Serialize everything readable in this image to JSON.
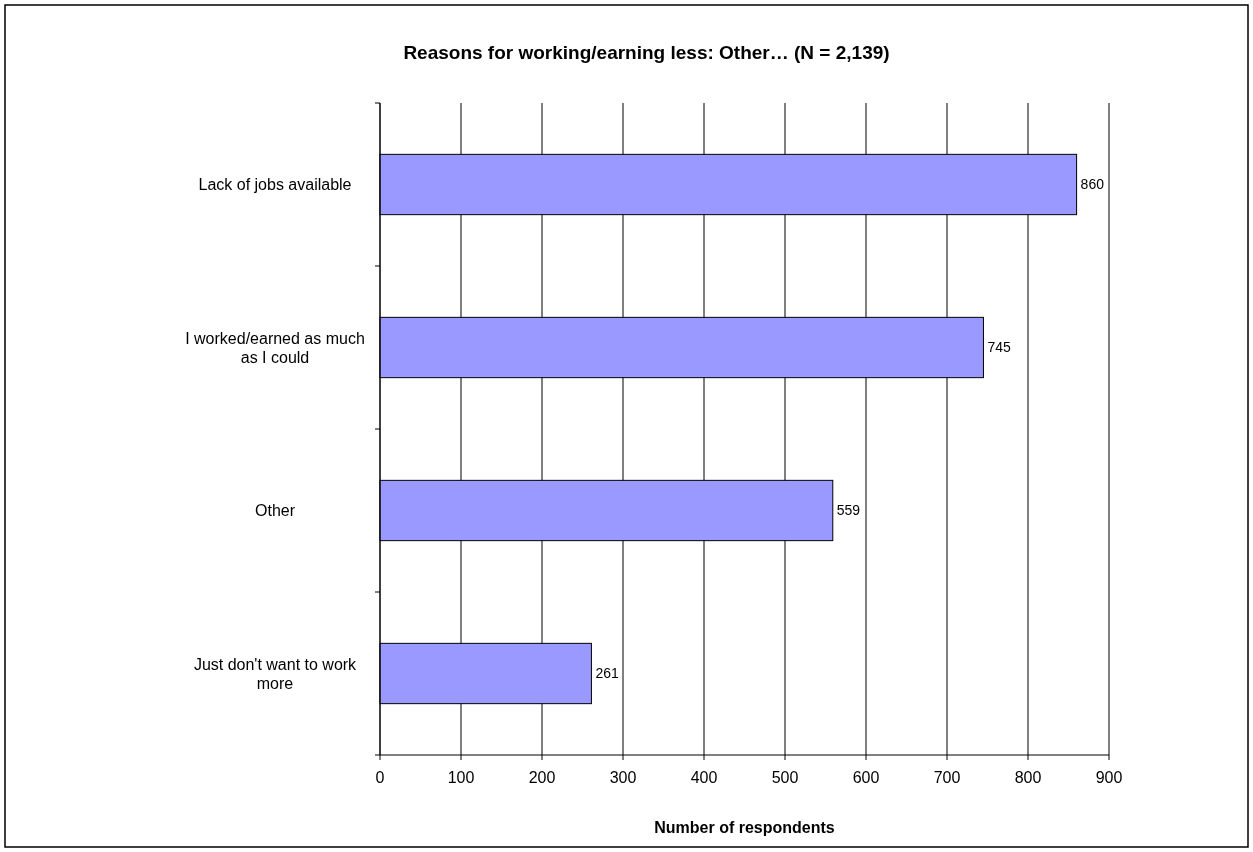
{
  "chart_data": {
    "type": "bar",
    "orientation": "horizontal",
    "title": "Reasons for working/earning less: Other… (N = 2,139)",
    "xlabel": "Number of respondents",
    "categories": [
      "Lack of jobs available",
      "I worked/earned as much as I could",
      "Other",
      "Just don't want to work more"
    ],
    "values": [
      860,
      745,
      559,
      261
    ],
    "color": "#9999ff",
    "xlim": [
      0,
      900
    ],
    "xticks": [
      0,
      100,
      200,
      300,
      400,
      500,
      600,
      700,
      800,
      900
    ],
    "grid": "x",
    "data_labels": true
  }
}
